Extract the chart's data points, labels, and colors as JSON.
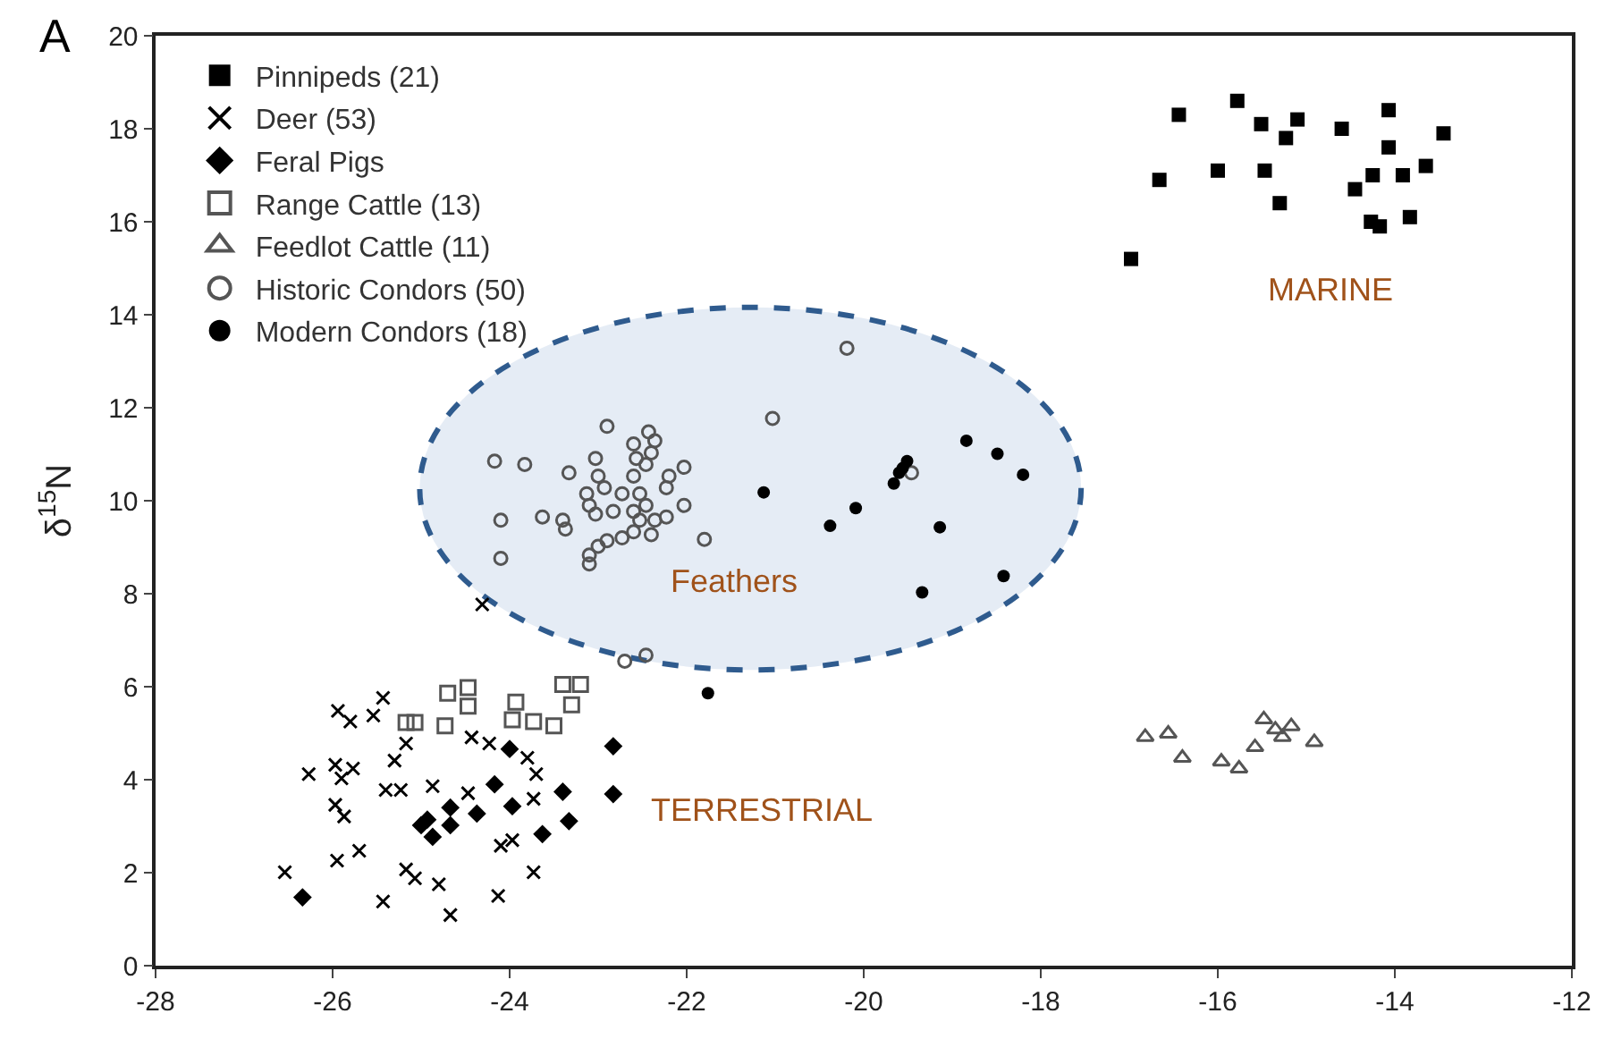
{
  "chart_data": {
    "type": "scatter",
    "ylabel": "δ$^{15}$N",
    "xlim": [
      -28,
      -12
    ],
    "ylim": [
      0,
      20
    ],
    "xticks": [
      -28,
      -26,
      -24,
      -22,
      -20,
      -18,
      -16,
      -14,
      -12
    ],
    "yticks": [
      0,
      2,
      4,
      6,
      8,
      10,
      12,
      14,
      16,
      18,
      20
    ],
    "grid": false,
    "legend": "top left",
    "annotations": [
      "A",
      "MARINE",
      "TERRESTRIAL",
      "Feathers"
    ],
    "series": [
      {
        "name": "Pinnipeds (21)",
        "color": "#000000",
        "marker": "square",
        "x": [
          -16.98,
          -16.66,
          -16.44,
          -16.0,
          -15.78,
          -15.51,
          -15.47,
          -15.3,
          -15.23,
          -15.1,
          -14.6,
          -14.45,
          -14.25,
          -14.27,
          -14.07,
          -14.07,
          -13.91,
          -13.83,
          -13.65,
          -13.45,
          -14.17
        ],
        "values": [
          15.2,
          16.9,
          18.3,
          17.1,
          18.6,
          18.1,
          17.1,
          16.4,
          17.8,
          18.2,
          18.0,
          16.7,
          17.0,
          16.0,
          18.4,
          17.6,
          17.0,
          16.1,
          17.2,
          17.9,
          15.9
        ]
      },
      {
        "name": "Deer (53)",
        "color": "#000000",
        "marker": "cross",
        "x": [
          -25.94,
          -25.8,
          -25.54,
          -25.43,
          -26.27,
          -25.97,
          -25.77,
          -25.9,
          -25.97,
          -25.87,
          -25.3,
          -25.17,
          -25.4,
          -25.23,
          -24.87,
          -24.43,
          -24.23,
          -23.8,
          -23.7,
          -24.47,
          -23.73,
          -24.1,
          -23.97,
          -26.54,
          -25.95,
          -25.7,
          -25.17,
          -25.07,
          -24.8,
          -25.43,
          -24.67,
          -24.13,
          -23.73,
          -24.31
        ],
        "values": [
          5.48,
          5.25,
          5.38,
          5.76,
          4.12,
          4.32,
          4.24,
          4.03,
          3.46,
          3.21,
          4.41,
          4.78,
          3.78,
          3.78,
          3.86,
          4.91,
          4.78,
          4.47,
          4.12,
          3.71,
          3.59,
          2.58,
          2.7,
          2.01,
          2.26,
          2.47,
          2.07,
          1.88,
          1.75,
          1.38,
          1.09,
          1.5,
          2.01,
          7.77
        ]
      },
      {
        "name": "Feral Pigs",
        "color": "#000000",
        "marker": "diamond",
        "x": [
          -22.83,
          -22.83,
          -23.4,
          -23.33,
          -23.63,
          -24.0,
          -24.17,
          -23.97,
          -24.37,
          -24.67,
          -24.93,
          -25.0,
          -24.87,
          -24.67,
          -26.34
        ],
        "values": [
          4.72,
          3.69,
          3.74,
          3.11,
          2.83,
          4.66,
          3.9,
          3.43,
          3.27,
          3.4,
          3.14,
          3.02,
          2.77,
          3.02,
          1.47
        ]
      },
      {
        "name": "Range Cattle (13)",
        "color": "#555555",
        "marker": "square-open",
        "x": [
          -24.7,
          -24.47,
          -24.47,
          -25.17,
          -24.73,
          -23.93,
          -23.97,
          -23.73,
          -23.5,
          -23.4,
          -23.2,
          -23.3,
          -25.07
        ],
        "values": [
          5.86,
          5.98,
          5.58,
          5.23,
          5.16,
          5.67,
          5.29,
          5.25,
          5.16,
          6.05,
          6.05,
          5.61,
          5.23
        ]
      },
      {
        "name": "Feedlot Cattle (11)",
        "color": "#555555",
        "marker": "triangle-open",
        "x": [
          -16.82,
          -16.56,
          -16.4,
          -15.96,
          -15.76,
          -15.58,
          -15.48,
          -15.35,
          -15.27,
          -15.17,
          -14.91
        ],
        "values": [
          4.92,
          4.99,
          4.47,
          4.39,
          4.24,
          4.7,
          5.3,
          5.08,
          4.92,
          5.15,
          4.81
        ]
      },
      {
        "name": "Historic Condors (50)",
        "color": "#555555",
        "marker": "circle-open",
        "x": [
          -20.19,
          -21.03,
          -19.46,
          -24.17,
          -23.83,
          -24.1,
          -24.1,
          -23.63,
          -23.4,
          -23.37,
          -23.33,
          -22.9,
          -23.03,
          -23.13,
          -23.1,
          -23.03,
          -23.0,
          -23.1,
          -23.1,
          -23.0,
          -22.9,
          -22.73,
          -22.83,
          -22.73,
          -22.6,
          -22.57,
          -22.6,
          -22.43,
          -22.36,
          -22.4,
          -22.53,
          -22.46,
          -22.53,
          -22.36,
          -22.4,
          -22.6,
          -22.23,
          -22.2,
          -22.03,
          -22.03,
          -22.23,
          -21.8,
          -22.6,
          -22.93,
          -22.46,
          -22.7,
          -22.46
        ],
        "values": [
          13.28,
          11.77,
          10.6,
          10.85,
          10.78,
          9.58,
          8.76,
          9.65,
          9.58,
          9.39,
          10.6,
          11.6,
          10.91,
          10.15,
          9.9,
          9.71,
          10.53,
          8.83,
          8.64,
          9.02,
          9.14,
          9.2,
          9.77,
          10.15,
          10.53,
          10.91,
          11.22,
          11.48,
          11.29,
          11.03,
          10.15,
          9.9,
          9.58,
          9.58,
          9.27,
          9.33,
          10.28,
          10.53,
          10.72,
          9.9,
          9.65,
          9.17,
          9.77,
          10.28,
          10.78,
          6.55,
          6.68
        ]
      },
      {
        "name": "Modern Condors (18)",
        "color": "#000000",
        "marker": "circle",
        "x": [
          -21.13,
          -20.38,
          -20.09,
          -19.66,
          -19.6,
          -19.51,
          -19.56,
          -19.14,
          -19.34,
          -18.84,
          -18.49,
          -18.2,
          -18.42,
          -21.76
        ],
        "values": [
          10.18,
          9.46,
          9.84,
          10.37,
          10.6,
          10.85,
          10.7,
          9.43,
          8.03,
          11.29,
          11.01,
          10.56,
          8.38,
          5.86
        ]
      }
    ]
  }
}
